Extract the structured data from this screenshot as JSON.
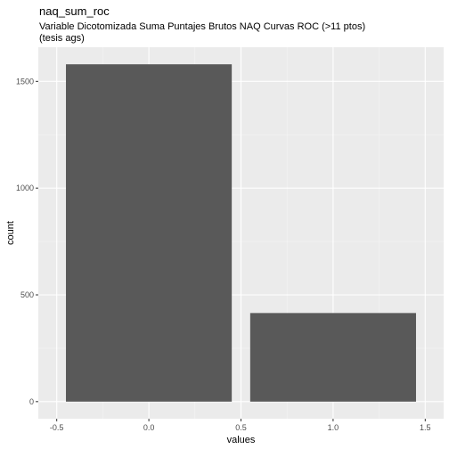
{
  "chart_data": {
    "type": "bar",
    "title": "naq_sum_roc",
    "subtitle_lines": [
      "Variable Dicotomizada Suma Puntajes Brutos NAQ Curvas ROC (>11 ptos)",
      "(tesis ags)"
    ],
    "xlabel": "values",
    "ylabel": "count",
    "bars": [
      {
        "x": 0,
        "value": 1580
      },
      {
        "x": 1,
        "value": 415
      }
    ],
    "bar_width": 0.9,
    "xlim": [
      -0.5,
      1.5
    ],
    "ylim": [
      0,
      1600
    ],
    "x_ticks": [
      {
        "value": -0.5,
        "label": "-0.5"
      },
      {
        "value": 0,
        "label": "0.0"
      },
      {
        "value": 0.5,
        "label": "0.5"
      },
      {
        "value": 1,
        "label": "1.0"
      },
      {
        "value": 1.5,
        "label": "1.5"
      }
    ],
    "y_ticks": [
      {
        "value": 0,
        "label": "0"
      },
      {
        "value": 500,
        "label": "500"
      },
      {
        "value": 1000,
        "label": "1000"
      },
      {
        "value": 1500,
        "label": "1500"
      }
    ],
    "colors": {
      "bar": "#595959",
      "panel": "#ebebeb",
      "grid_major": "#ffffff",
      "grid_minor": "#f5f5f5"
    },
    "grid": true,
    "legend": "none"
  }
}
